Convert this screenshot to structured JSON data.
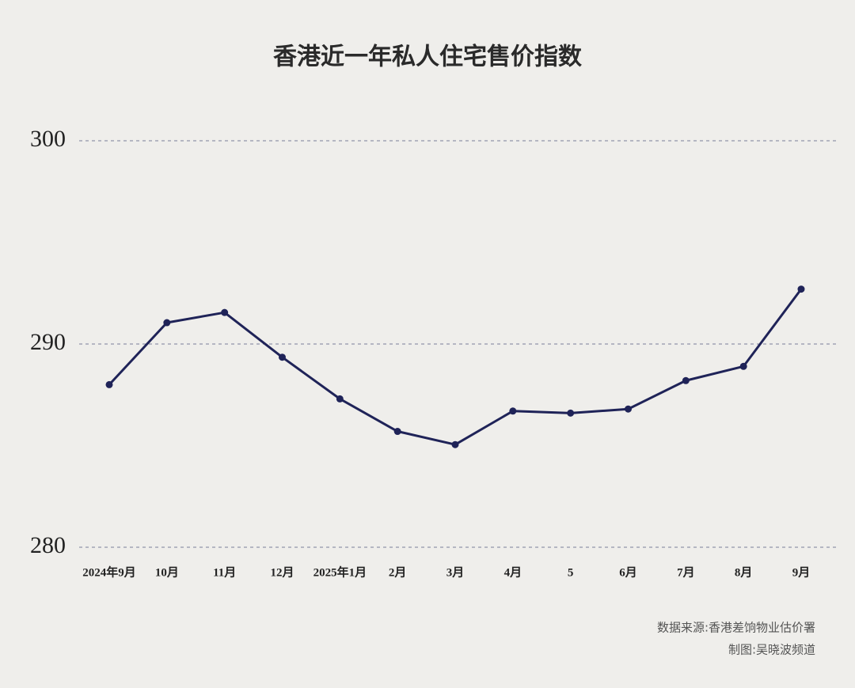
{
  "chart_data": {
    "type": "line",
    "title": "香港近一年私人住宅售价指数",
    "categories": [
      "2024年9月",
      "10月",
      "11月",
      "12月",
      "2025年1月",
      "2月",
      "3月",
      "4月",
      "5",
      "6月",
      "7月",
      "8月",
      "9月"
    ],
    "values": [
      288.0,
      291.05,
      291.55,
      289.35,
      287.3,
      285.7,
      285.05,
      286.7,
      286.6,
      286.8,
      288.2,
      288.9,
      292.7
    ],
    "color": "#1f2358",
    "ylim": [
      280,
      300
    ],
    "yticks": [
      280,
      290,
      300
    ],
    "grid": true,
    "source": "数据来源:香港差饷物业估价署",
    "credit": "制图:吴晓波频道"
  }
}
